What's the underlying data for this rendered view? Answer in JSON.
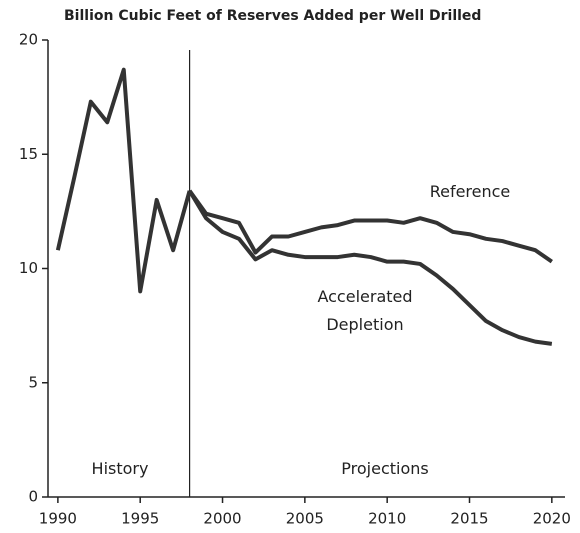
{
  "chart_data": {
    "type": "line",
    "title": "Billion Cubic Feet of Reserves Added per Well Drilled",
    "x": [
      1990,
      1991,
      1992,
      1993,
      1994,
      1995,
      1996,
      1997,
      1998,
      1999,
      2000,
      2001,
      2002,
      2003,
      2004,
      2005,
      2006,
      2007,
      2008,
      2009,
      2010,
      2011,
      2012,
      2013,
      2014,
      2015,
      2016,
      2017,
      2018,
      2019,
      2020
    ],
    "series": [
      {
        "name": "History",
        "color": "#333333",
        "values": [
          10.8,
          14.0,
          17.3,
          16.4,
          18.7,
          9.0,
          13.0,
          10.8,
          13.4,
          null,
          null,
          null,
          null,
          null,
          null,
          null,
          null,
          null,
          null,
          null,
          null,
          null,
          null,
          null,
          null,
          null,
          null,
          null,
          null,
          null,
          null
        ]
      },
      {
        "name": "Reference",
        "color": "#333333",
        "values": [
          null,
          null,
          null,
          null,
          null,
          null,
          null,
          null,
          13.4,
          12.4,
          12.2,
          12.0,
          10.7,
          11.4,
          11.4,
          11.6,
          11.8,
          11.9,
          12.1,
          12.1,
          12.1,
          12.0,
          12.2,
          12.0,
          11.6,
          11.5,
          11.3,
          11.2,
          11.0,
          10.8,
          10.3
        ]
      },
      {
        "name": "Accelerated Depletion",
        "color": "#333333",
        "values": [
          null,
          null,
          null,
          null,
          null,
          null,
          null,
          null,
          13.4,
          12.2,
          11.6,
          11.3,
          10.4,
          10.8,
          10.6,
          10.5,
          10.5,
          10.5,
          10.6,
          10.5,
          10.3,
          10.3,
          10.2,
          9.7,
          9.1,
          8.4,
          7.7,
          7.3,
          7.0,
          6.8,
          6.7
        ]
      }
    ],
    "annotations": [
      "Projections"
    ],
    "divider": 1998,
    "xlim": [
      1989.4,
      2020.8
    ],
    "xticks": [
      1990,
      1995,
      2000,
      2005,
      2010,
      2015,
      2020
    ],
    "ylim": [
      0,
      20
    ],
    "yticks": [
      0,
      5,
      10,
      15,
      20
    ]
  }
}
